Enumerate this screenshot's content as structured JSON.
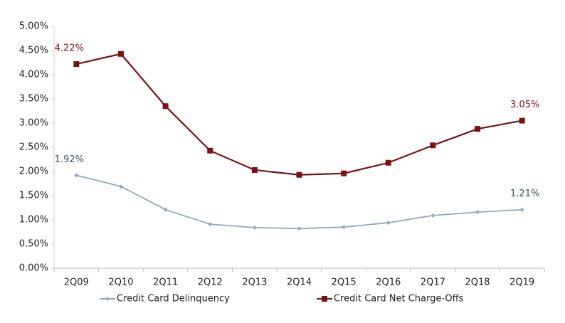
{
  "chart_data": {
    "type": "line",
    "categories": [
      "2Q09",
      "2Q10",
      "2Q11",
      "2Q12",
      "2Q13",
      "2Q14",
      "2Q15",
      "2Q16",
      "2Q17",
      "2Q18",
      "2Q19"
    ],
    "series": [
      {
        "name": "Credit Card Delinquency",
        "color": "#8fa9bc",
        "marker": "diamond",
        "values": [
          1.92,
          1.69,
          1.21,
          0.91,
          0.84,
          0.82,
          0.85,
          0.94,
          1.09,
          1.16,
          1.21
        ],
        "value_labels": [
          "1.92%",
          null,
          null,
          null,
          null,
          null,
          null,
          null,
          null,
          null,
          "1.21%"
        ],
        "label_color": "#3d4f63"
      },
      {
        "name": "Credit Card Net Charge-Offs",
        "color": "#7b1113",
        "marker": "square",
        "values": [
          4.22,
          4.43,
          3.35,
          2.43,
          2.03,
          1.93,
          1.96,
          2.18,
          2.54,
          2.88,
          3.05
        ],
        "value_labels": [
          "4.22%",
          null,
          null,
          null,
          null,
          null,
          null,
          null,
          null,
          null,
          "3.05%"
        ],
        "label_color": "#7b1113"
      }
    ],
    "ylim": [
      0,
      5
    ],
    "yticks": [
      {
        "value": 0,
        "label": "0.00%"
      },
      {
        "value": 0.5,
        "label": "0.50%"
      },
      {
        "value": 1,
        "label": "1.00%"
      },
      {
        "value": 1.5,
        "label": "1.50%"
      },
      {
        "value": 2,
        "label": "2.00%"
      },
      {
        "value": 2.5,
        "label": "2.50%"
      },
      {
        "value": 3,
        "label": "3.00%"
      },
      {
        "value": 3.5,
        "label": "3.50%"
      },
      {
        "value": 4,
        "label": "4.00%"
      },
      {
        "value": 4.5,
        "label": "4.50%"
      },
      {
        "value": 5,
        "label": "5.00%"
      }
    ],
    "grid": false,
    "legend": "bottom"
  }
}
